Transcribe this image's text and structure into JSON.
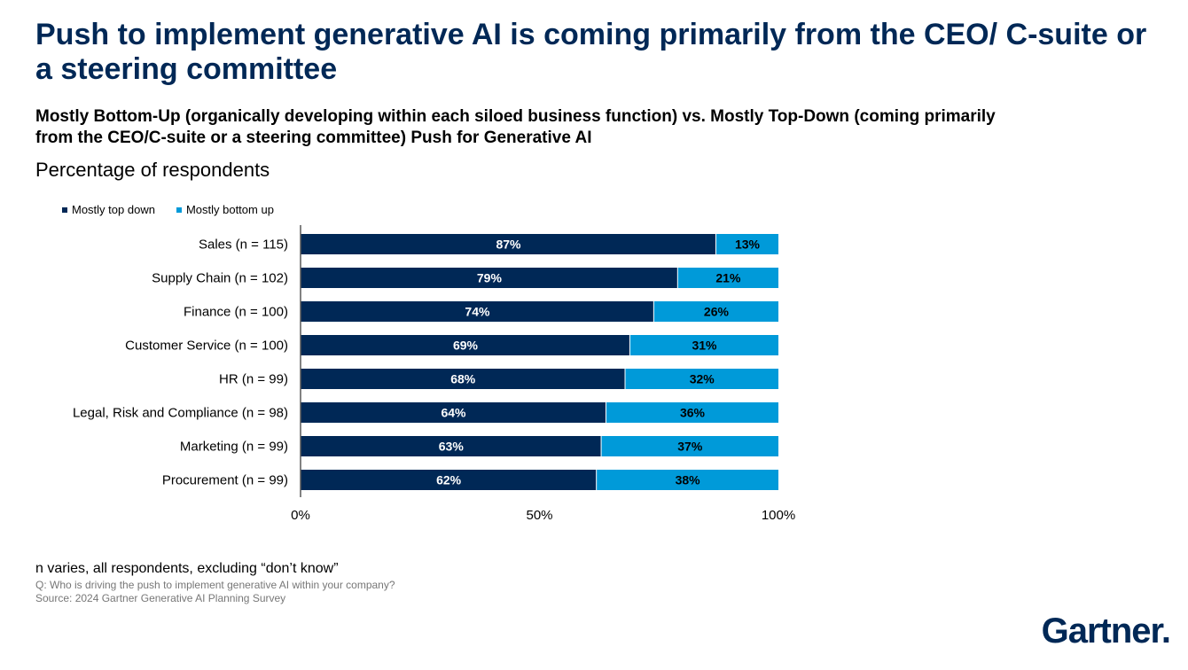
{
  "title": "Push to implement generative AI is coming primarily from the CEO/ C-suite or a steering committee",
  "subtitle": "Mostly Bottom-Up (organically developing within each siloed business function) vs. Mostly Top-Down (coming primarily from the CEO/C-suite or a steering committee) Push for Generative AI",
  "measure": "Percentage of respondents",
  "footer": {
    "note": "n varies, all respondents, excluding “don’t know”",
    "question": "Q: Who is driving the push to implement generative AI within your company?",
    "source": "Source: 2024 Gartner Generative AI Planning Survey"
  },
  "logo": {
    "text": "Gartner",
    "dot": "."
  },
  "colors": {
    "top_down": "#002856",
    "bottom_up": "#009AD9",
    "title": "#002856"
  },
  "chart_data": {
    "type": "bar",
    "orientation": "horizontal",
    "stacked": true,
    "categories": [
      "Sales (n = 115)",
      "Supply Chain (n = 102)",
      "Finance (n = 100)",
      "Customer Service (n = 100)",
      "HR (n = 99)",
      "Legal, Risk and Compliance (n = 98)",
      "Marketing (n = 99)",
      "Procurement (n = 99)"
    ],
    "series": [
      {
        "name": "Mostly top down",
        "values": [
          87,
          79,
          74,
          69,
          68,
          64,
          63,
          62
        ],
        "color": "#002856"
      },
      {
        "name": "Mostly bottom up",
        "values": [
          13,
          21,
          26,
          31,
          32,
          36,
          37,
          38
        ],
        "color": "#009AD9"
      }
    ],
    "xlim": [
      0,
      100
    ],
    "xticks": [
      0,
      50,
      100
    ],
    "xtick_labels": [
      "0%",
      "50%",
      "100%"
    ],
    "legend_position": "top-left",
    "grid": false
  }
}
